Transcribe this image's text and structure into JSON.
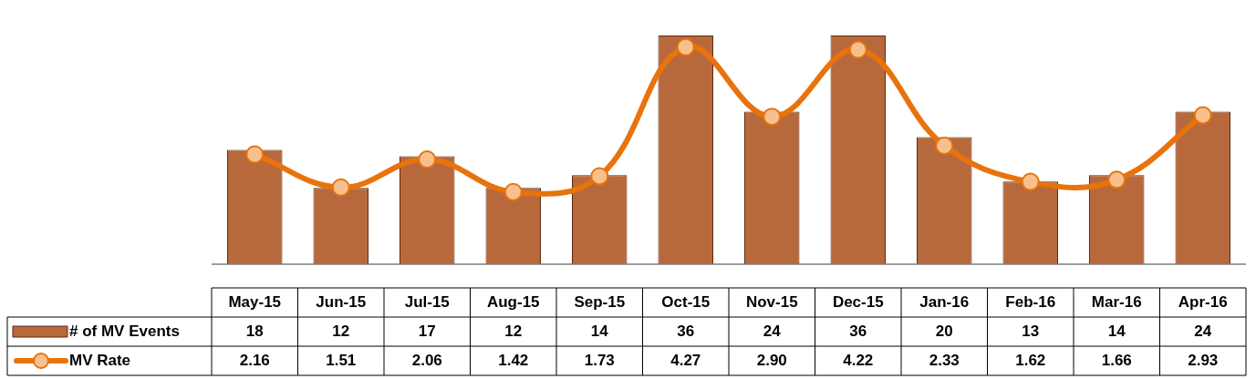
{
  "chart_data": {
    "type": "bar",
    "categories": [
      "May-15",
      "Jun-15",
      "Jul-15",
      "Aug-15",
      "Sep-15",
      "Oct-15",
      "Nov-15",
      "Dec-15",
      "Jan-16",
      "Feb-16",
      "Mar-16",
      "Apr-16"
    ],
    "series": [
      {
        "name": "# of MV Events",
        "color": "#b8693c",
        "values": [
          18,
          12,
          17,
          12,
          14,
          36,
          24,
          36,
          20,
          13,
          14,
          24
        ],
        "value_labels": [
          "18",
          "12",
          "17",
          "12",
          "14",
          "36",
          "24",
          "36",
          "20",
          "13",
          "14",
          "24"
        ]
      },
      {
        "name": "MV Rate",
        "type": "line",
        "axis": "y2",
        "color": "#e8730c",
        "values": [
          2.16,
          1.51,
          2.06,
          1.42,
          1.73,
          4.27,
          2.9,
          4.22,
          2.33,
          1.62,
          1.66,
          2.93
        ],
        "value_labels": [
          "2.16",
          "1.51",
          "2.06",
          "1.42",
          "1.73",
          "4.27",
          "2.90",
          "4.22",
          "2.33",
          "1.62",
          "1.66",
          "2.93"
        ]
      }
    ],
    "legend": "bottom",
    "marker": "circle",
    "line_style": "solid"
  }
}
